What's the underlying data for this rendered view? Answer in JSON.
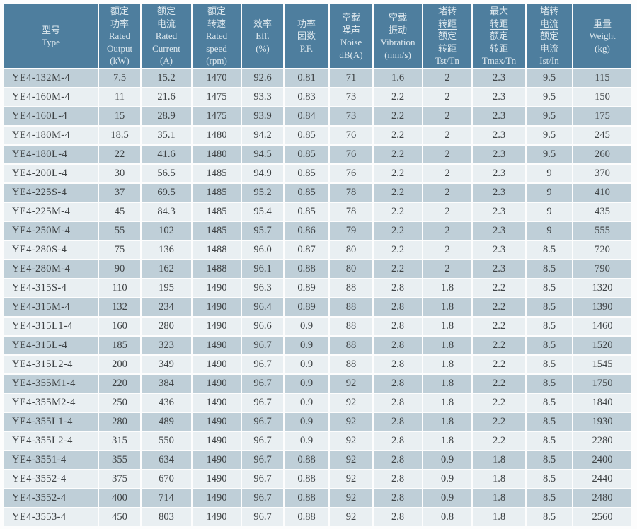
{
  "table": {
    "header_bg": "#4e7e9e",
    "header_text_color": "#dde8ee",
    "row_odd_bg": "#bfcfd8",
    "row_even_bg": "#e9eff2",
    "cell_text_color": "#3e4244",
    "columns": [
      {
        "id": "type",
        "lines": [
          "型号",
          "Type"
        ]
      },
      {
        "id": "rated-output",
        "lines": [
          "额定",
          "功率",
          "Rated",
          "Output",
          "(kW)"
        ]
      },
      {
        "id": "rated-current",
        "lines": [
          "额定",
          "电流",
          "Rated",
          "Current",
          "(A)"
        ]
      },
      {
        "id": "rated-speed",
        "lines": [
          "额定",
          "转速",
          "Rated",
          "speed",
          "(rpm)"
        ]
      },
      {
        "id": "efficiency",
        "lines": [
          "效率",
          "Eff.",
          "(%)"
        ]
      },
      {
        "id": "power-factor",
        "lines": [
          "功率",
          "因数",
          "P.F."
        ]
      },
      {
        "id": "noise",
        "lines": [
          "空载",
          "噪声",
          "Noise",
          "dB(A)"
        ]
      },
      {
        "id": "vibration",
        "lines": [
          "空载",
          "振动",
          "Vibration",
          "(mm/s)"
        ]
      },
      {
        "id": "tst-tn",
        "lines": [
          "堵转",
          "转距",
          "额定",
          "转距",
          "Tst/Tn"
        ],
        "underline_line": 1
      },
      {
        "id": "tmax-tn",
        "lines": [
          "最大",
          "转距",
          "额定",
          "转距",
          "Tmax/Tn"
        ],
        "underline_line": 1
      },
      {
        "id": "ist-in",
        "lines": [
          "堵转",
          "电流",
          "额定",
          "电流",
          "Ist/In"
        ],
        "underline_line": 1
      },
      {
        "id": "weight",
        "lines": [
          "重量",
          "Weight",
          "(kg)"
        ]
      }
    ],
    "rows": [
      [
        "YE4-132M-4",
        "7.5",
        "15.2",
        "1470",
        "92.6",
        "0.81",
        "71",
        "1.6",
        "2",
        "2.3",
        "9.5",
        "115"
      ],
      [
        "YE4-160M-4",
        "11",
        "21.6",
        "1475",
        "93.3",
        "0.83",
        "73",
        "2.2",
        "2",
        "2.3",
        "9.5",
        "150"
      ],
      [
        "YE4-160L-4",
        "15",
        "28.9",
        "1475",
        "93.9",
        "0.84",
        "73",
        "2.2",
        "2",
        "2.3",
        "9.5",
        "175"
      ],
      [
        "YE4-180M-4",
        "18.5",
        "35.1",
        "1480",
        "94.2",
        "0.85",
        "76",
        "2.2",
        "2",
        "2.3",
        "9.5",
        "245"
      ],
      [
        "YE4-180L-4",
        "22",
        "41.6",
        "1480",
        "94.5",
        "0.85",
        "76",
        "2.2",
        "2",
        "2.3",
        "9.5",
        "260"
      ],
      [
        "YE4-200L-4",
        "30",
        "56.5",
        "1485",
        "94.9",
        "0.85",
        "76",
        "2.2",
        "2",
        "2.3",
        "9",
        "370"
      ],
      [
        "YE4-225S-4",
        "37",
        "69.5",
        "1485",
        "95.2",
        "0.85",
        "78",
        "2.2",
        "2",
        "2.3",
        "9",
        "410"
      ],
      [
        "YE4-225M-4",
        "45",
        "84.3",
        "1485",
        "95.4",
        "0.85",
        "78",
        "2.2",
        "2",
        "2.3",
        "9",
        "435"
      ],
      [
        "YE4-250M-4",
        "55",
        "102",
        "1485",
        "95.7",
        "0.86",
        "79",
        "2.2",
        "2",
        "2.3",
        "9",
        "555"
      ],
      [
        "YE4-280S-4",
        "75",
        "136",
        "1488",
        "96.0",
        "0.87",
        "80",
        "2.2",
        "2",
        "2.3",
        "8.5",
        "720"
      ],
      [
        "YE4-280M-4",
        "90",
        "162",
        "1488",
        "96.1",
        "0.88",
        "80",
        "2.2",
        "2",
        "2.3",
        "8.5",
        "790"
      ],
      [
        "YE4-315S-4",
        "110",
        "195",
        "1490",
        "96.3",
        "0.89",
        "88",
        "2.8",
        "1.8",
        "2.2",
        "8.5",
        "1320"
      ],
      [
        "YE4-315M-4",
        "132",
        "234",
        "1490",
        "96.4",
        "0.89",
        "88",
        "2.8",
        "1.8",
        "2.2",
        "8.5",
        "1390"
      ],
      [
        "YE4-315L1-4",
        "160",
        "280",
        "1490",
        "96.6",
        "0.9",
        "88",
        "2.8",
        "1.8",
        "2.2",
        "8.5",
        "1460"
      ],
      [
        "YE4-315L-4",
        "185",
        "323",
        "1490",
        "96.7",
        "0.9",
        "88",
        "2.8",
        "1.8",
        "2.2",
        "8.5",
        "1520"
      ],
      [
        "YE4-315L2-4",
        "200",
        "349",
        "1490",
        "96.7",
        "0.9",
        "88",
        "2.8",
        "1.8",
        "2.2",
        "8.5",
        "1545"
      ],
      [
        "YE4-355M1-4",
        "220",
        "384",
        "1490",
        "96.7",
        "0.9",
        "92",
        "2.8",
        "1.8",
        "2.2",
        "8.5",
        "1750"
      ],
      [
        "YE4-355M2-4",
        "250",
        "436",
        "1490",
        "96.7",
        "0.9",
        "92",
        "2.8",
        "1.8",
        "2.2",
        "8.5",
        "1840"
      ],
      [
        "YE4-355L1-4",
        "280",
        "489",
        "1490",
        "96.7",
        "0.9",
        "92",
        "2.8",
        "1.8",
        "2.2",
        "8.5",
        "1930"
      ],
      [
        "YE4-355L2-4",
        "315",
        "550",
        "1490",
        "96.7",
        "0.9",
        "92",
        "2.8",
        "1.8",
        "2.2",
        "8.5",
        "2280"
      ],
      [
        "YE4-3551-4",
        "355",
        "634",
        "1490",
        "96.7",
        "0.88",
        "92",
        "2.8",
        "0.9",
        "1.8",
        "8.5",
        "2400"
      ],
      [
        "YE4-3552-4",
        "375",
        "670",
        "1490",
        "96.7",
        "0.88",
        "92",
        "2.8",
        "0.9",
        "1.8",
        "8.5",
        "2440"
      ],
      [
        "YE4-3552-4",
        "400",
        "714",
        "1490",
        "96.7",
        "0.88",
        "92",
        "2.8",
        "0.9",
        "1.8",
        "8.5",
        "2480"
      ],
      [
        "YE4-3553-4",
        "450",
        "803",
        "1490",
        "96.7",
        "0.88",
        "92",
        "2.8",
        "0.8",
        "1.8",
        "8.5",
        "2560"
      ]
    ]
  }
}
